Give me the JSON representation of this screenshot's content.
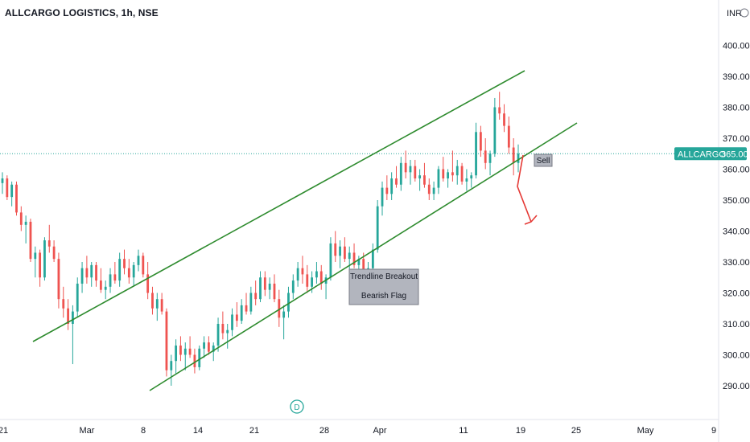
{
  "title": "ALLCARGO LOGISTICS, 1h, NSE",
  "currency_label": "INR",
  "currency_icon": "settings-circle-icon",
  "price_badge": {
    "symbol": "ALLCARGO",
    "price": "365.00",
    "color": "#26a69a"
  },
  "dividend_marker": {
    "label": "D",
    "color": "#26a69a"
  },
  "colors": {
    "up": "#26a69a",
    "down": "#ef5350",
    "channel": "#2e8b2e",
    "arrow": "#e53935"
  },
  "chart_data": {
    "type": "candlestick",
    "title": "ALLCARGO LOGISTICS, 1h, NSE",
    "y_axis": {
      "side": "right",
      "range": [
        280,
        410
      ],
      "ticks": [
        290,
        300,
        310,
        320,
        330,
        340,
        350,
        360,
        370,
        380,
        390,
        400
      ],
      "tick_labels": [
        "290.00",
        "300.00",
        "310.00",
        "320.00",
        "330.00",
        "340.00",
        "350.00",
        "360.00",
        "370.00",
        "380.00",
        "390.00",
        "400.00"
      ]
    },
    "x_axis": {
      "tick_labels": [
        "21",
        "Mar",
        "8",
        "14",
        "21",
        "28",
        "Apr",
        "11",
        "19",
        "25",
        "May",
        "9"
      ]
    },
    "last_price": 365.0,
    "series": [
      {
        "values": [
          [
            355.5,
            359,
            352,
            357
          ],
          [
            357,
            358,
            350,
            351
          ],
          [
            351,
            356,
            348,
            355
          ],
          [
            355,
            356,
            345,
            346
          ],
          [
            346,
            348,
            340,
            342
          ],
          [
            342,
            345,
            336,
            343
          ],
          [
            343,
            344,
            330,
            331
          ],
          [
            331,
            335,
            325,
            333
          ],
          [
            333,
            334,
            322,
            325
          ],
          [
            325,
            338,
            324,
            337
          ],
          [
            337,
            342,
            333,
            335
          ],
          [
            335,
            337,
            330,
            331
          ],
          [
            331,
            333,
            315,
            318
          ],
          [
            318,
            322,
            312,
            315
          ],
          [
            315,
            318,
            308,
            310
          ],
          [
            310,
            316,
            297,
            314
          ],
          [
            314,
            325,
            312,
            323
          ],
          [
            323,
            330,
            320,
            328
          ],
          [
            328,
            332,
            323,
            325
          ],
          [
            325,
            330,
            322,
            329
          ],
          [
            329,
            330,
            322,
            324
          ],
          [
            324,
            328,
            320,
            321
          ],
          [
            321,
            324,
            318,
            322
          ],
          [
            322,
            328,
            320,
            326
          ],
          [
            326,
            330,
            323,
            324
          ],
          [
            324,
            333,
            322,
            331
          ],
          [
            331,
            334,
            326,
            328
          ],
          [
            328,
            331,
            323,
            325
          ],
          [
            325,
            330,
            322,
            329
          ],
          [
            329,
            334,
            327,
            332
          ],
          [
            332,
            333,
            325,
            326
          ],
          [
            326,
            330,
            318,
            320
          ],
          [
            320,
            322,
            313,
            315
          ],
          [
            315,
            320,
            311,
            318
          ],
          [
            318,
            320,
            313,
            314
          ],
          [
            314,
            315,
            293,
            295
          ],
          [
            295,
            300,
            290,
            298
          ],
          [
            298,
            305,
            294,
            303
          ],
          [
            303,
            306,
            298,
            300
          ],
          [
            300,
            304,
            295,
            302
          ],
          [
            302,
            306,
            299,
            300
          ],
          [
            300,
            302,
            294,
            296
          ],
          [
            296,
            303,
            295,
            302
          ],
          [
            302,
            306,
            299,
            304
          ],
          [
            304,
            306,
            300,
            301
          ],
          [
            301,
            304,
            298,
            303
          ],
          [
            303,
            312,
            301,
            310
          ],
          [
            310,
            314,
            305,
            307
          ],
          [
            307,
            310,
            302,
            308
          ],
          [
            308,
            315,
            306,
            313
          ],
          [
            313,
            317,
            309,
            311
          ],
          [
            311,
            318,
            310,
            316
          ],
          [
            316,
            320,
            313,
            314
          ],
          [
            314,
            322,
            313,
            320
          ],
          [
            320,
            324,
            316,
            318
          ],
          [
            318,
            327,
            317,
            325
          ],
          [
            325,
            327,
            319,
            321
          ],
          [
            321,
            325,
            318,
            323
          ],
          [
            323,
            326,
            317,
            318
          ],
          [
            318,
            321,
            309,
            312
          ],
          [
            312,
            316,
            305,
            314
          ],
          [
            314,
            322,
            312,
            320
          ],
          [
            320,
            326,
            318,
            324
          ],
          [
            324,
            330,
            322,
            328
          ],
          [
            328,
            332,
            323,
            326
          ],
          [
            326,
            329,
            320,
            322
          ],
          [
            322,
            327,
            320,
            325
          ],
          [
            325,
            330,
            323,
            327
          ],
          [
            327,
            329,
            321,
            323
          ],
          [
            323,
            326,
            318,
            325
          ],
          [
            325,
            338,
            324,
            336
          ],
          [
            336,
            340,
            330,
            332
          ],
          [
            332,
            337,
            328,
            335
          ],
          [
            335,
            338,
            330,
            331
          ],
          [
            331,
            335,
            326,
            333
          ],
          [
            333,
            336,
            328,
            329
          ],
          [
            329,
            332,
            325,
            331
          ],
          [
            331,
            333,
            326,
            327
          ],
          [
            327,
            330,
            324,
            328
          ],
          [
            328,
            336,
            327,
            334
          ],
          [
            334,
            350,
            333,
            348
          ],
          [
            348,
            356,
            345,
            354
          ],
          [
            354,
            358,
            350,
            352
          ],
          [
            352,
            359,
            350,
            357
          ],
          [
            357,
            361,
            354,
            355
          ],
          [
            355,
            364,
            353,
            362
          ],
          [
            362,
            366,
            357,
            359
          ],
          [
            359,
            363,
            355,
            361
          ],
          [
            361,
            363,
            356,
            357
          ],
          [
            357,
            360,
            353,
            358
          ],
          [
            358,
            362,
            354,
            355
          ],
          [
            355,
            357,
            350,
            352
          ],
          [
            352,
            356,
            350,
            354
          ],
          [
            354,
            361,
            352,
            360
          ],
          [
            360,
            364,
            356,
            357
          ],
          [
            357,
            360,
            354,
            359
          ],
          [
            359,
            366,
            356,
            358
          ],
          [
            358,
            363,
            355,
            361
          ],
          [
            361,
            362,
            355,
            356
          ],
          [
            356,
            360,
            353,
            357
          ],
          [
            357,
            359,
            354,
            358
          ],
          [
            358,
            375,
            357,
            372
          ],
          [
            372,
            374,
            364,
            366
          ],
          [
            366,
            370,
            360,
            362
          ],
          [
            362,
            366,
            358,
            365
          ],
          [
            365,
            383,
            364,
            380
          ],
          [
            380,
            385,
            376,
            378
          ],
          [
            378,
            381,
            372,
            374
          ],
          [
            374,
            377,
            365,
            367
          ],
          [
            367,
            370,
            358,
            362
          ],
          [
            362,
            368,
            359,
            365
          ]
        ]
      }
    ],
    "annotations": [
      "Trendline Breakout",
      "Bearish Flag",
      "Sell"
    ]
  }
}
